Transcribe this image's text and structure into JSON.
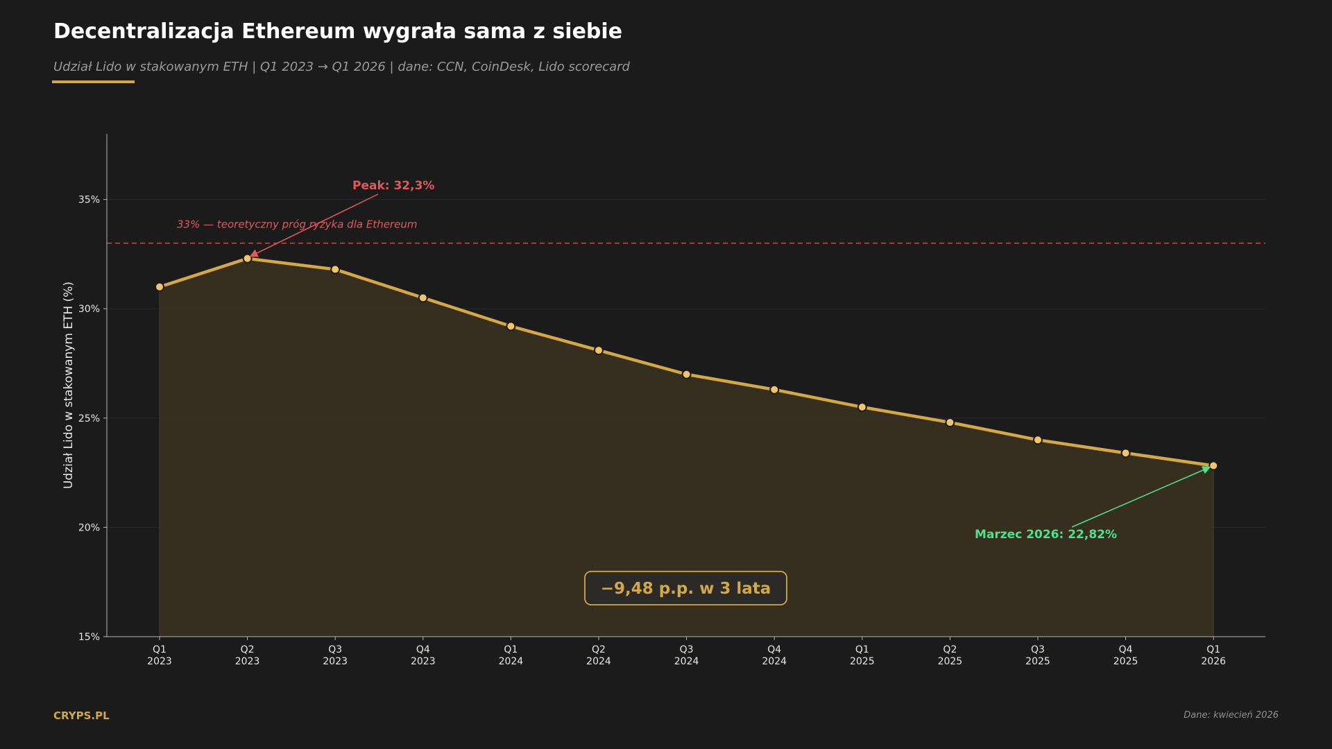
{
  "header": {
    "title": "Decentralizacja Ethereum wygrała sama z siebie",
    "subtitle": "Udział Lido w stakowanym ETH | Q1 2023 → Q1 2026 | dane: CCN, CoinDesk, Lido scorecard"
  },
  "footer": {
    "brand": "CRYPS.PL",
    "date_note": "Dane: kwiecień 2026"
  },
  "colors": {
    "background": "#1b1b1b",
    "line": "#d4a843",
    "marker": "#f5c46a",
    "fill": "#3a311f",
    "threshold": "#e05a5a",
    "peak": "#e05a5a",
    "latest": "#4de38a",
    "axis_text": "#e8e8e8"
  },
  "chart_data": {
    "type": "area",
    "x": [
      "Q1 2023",
      "Q2 2023",
      "Q3 2023",
      "Q4 2023",
      "Q1 2024",
      "Q2 2024",
      "Q3 2024",
      "Q4 2024",
      "Q1 2025",
      "Q2 2025",
      "Q3 2025",
      "Q4 2025",
      "Q1 2026"
    ],
    "x_tick_labels": [
      [
        "Q1",
        "2023"
      ],
      [
        "Q2",
        "2023"
      ],
      [
        "Q3",
        "2023"
      ],
      [
        "Q4",
        "2023"
      ],
      [
        "Q1",
        "2024"
      ],
      [
        "Q2",
        "2024"
      ],
      [
        "Q3",
        "2024"
      ],
      [
        "Q4",
        "2024"
      ],
      [
        "Q1",
        "2025"
      ],
      [
        "Q2",
        "2025"
      ],
      [
        "Q3",
        "2025"
      ],
      [
        "Q4",
        "2025"
      ],
      [
        "Q1",
        "2026"
      ]
    ],
    "series": [
      {
        "values": [
          31.0,
          32.3,
          31.8,
          30.5,
          29.2,
          28.1,
          27.0,
          26.3,
          25.5,
          24.8,
          24.0,
          23.4,
          22.82
        ]
      }
    ],
    "ylabel": "Udział Lido w stakowanym ETH (%)",
    "xlabel": "",
    "ylim": [
      15,
      38
    ],
    "yticks": [
      15,
      20,
      25,
      30,
      35
    ],
    "ytick_labels": [
      "15%",
      "20%",
      "25%",
      "30%",
      "35%"
    ],
    "grid": true,
    "threshold": {
      "value": 33,
      "label": "33% — teoretyczny próg ryzyka dla Ethereum"
    },
    "annotations": {
      "peak": {
        "label": "Peak: 32,3%",
        "index": 1
      },
      "latest": {
        "label": "Marzec 2026: 22,82%",
        "index": 12
      },
      "change": {
        "label": "−9,48 p.p. w 3 lata"
      }
    }
  }
}
